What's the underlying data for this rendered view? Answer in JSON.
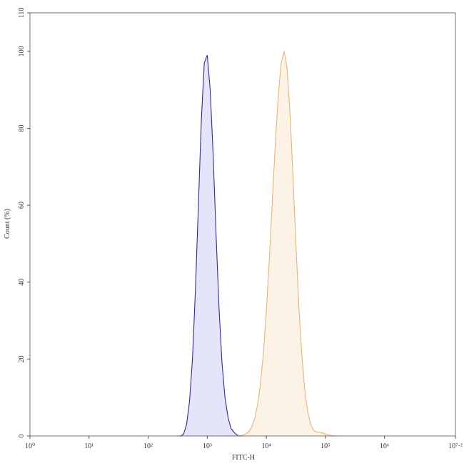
{
  "chart_data": {
    "type": "histogram-overlay",
    "x_label": "FITC-H",
    "y_label": "Count (%)",
    "xscale": "log",
    "xlim": [
      1,
      15848931.92
    ],
    "xticks": [
      {
        "value": 1,
        "label": "10⁰"
      },
      {
        "value": 10,
        "label": "10¹"
      },
      {
        "value": 100,
        "label": "10²"
      },
      {
        "value": 1000,
        "label": "10³"
      },
      {
        "value": 10000,
        "label": "10⁴"
      },
      {
        "value": 100000,
        "label": "10⁵"
      },
      {
        "value": 1000000,
        "label": "10⁶"
      },
      {
        "value": 15848931.92,
        "label": "10⁷·²"
      }
    ],
    "ylim": [
      0,
      110
    ],
    "yticks": [
      0,
      20,
      40,
      60,
      80,
      100,
      110
    ],
    "series": [
      {
        "color": "#2e2e8c",
        "fill": "#e4e4fa",
        "x": [
          316,
          355,
          398,
          447,
          501,
          562,
          631,
          708,
          794,
          891,
          1000,
          1122,
          1259,
          1413,
          1585,
          1778,
          1995,
          2239,
          2512,
          2818,
          3162,
          3548,
          3981
        ],
        "values": [
          0,
          0,
          0.5,
          3,
          9,
          20,
          38,
          60,
          82,
          97,
          99,
          90,
          73,
          52,
          33,
          19,
          10,
          5,
          2,
          1,
          0.3,
          0,
          0
        ]
      },
      {
        "color": "#e2b57c",
        "fill": "#fdf2e6",
        "x": [
          1995,
          2239,
          2512,
          2818,
          3162,
          3548,
          3981,
          4467,
          5012,
          5623,
          6310,
          7079,
          7943,
          8913,
          10000,
          11220,
          12589,
          14125,
          15849,
          17783,
          19953,
          22387,
          25119,
          28184,
          31623,
          35481,
          39811,
          44668,
          50119,
          56234,
          63096,
          70795,
          79433,
          89125,
          100000,
          112202,
          125893,
          141254,
          158489
        ],
        "values": [
          0,
          0,
          0,
          0,
          0,
          0.1,
          0.2,
          0.5,
          1.1,
          2.3,
          4.4,
          8,
          13.5,
          21.6,
          32.5,
          45.8,
          60.7,
          75.5,
          88.2,
          96.9,
          100,
          95.8,
          84.1,
          67.8,
          50,
          33.9,
          21.1,
          12,
          6.3,
          3,
          1.5,
          1,
          1,
          0.8,
          0.5,
          0.3,
          0.1,
          0,
          0
        ]
      }
    ]
  }
}
